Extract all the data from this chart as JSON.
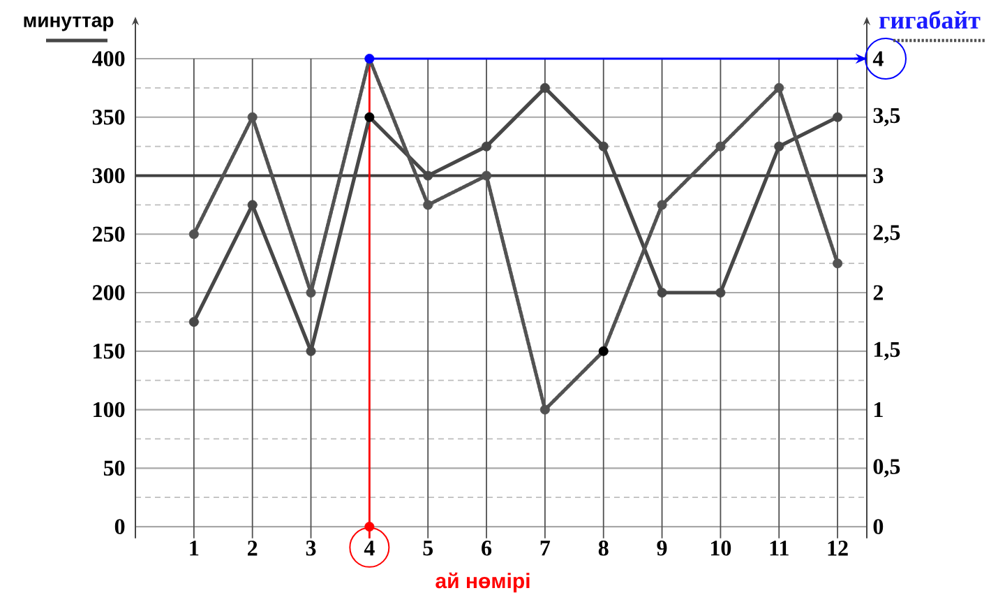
{
  "chart_data": {
    "type": "line",
    "xlabel": "ай нөмірі",
    "ylabel": "минуттар",
    "y2label": "гигабайт",
    "x": [
      1,
      2,
      3,
      4,
      5,
      6,
      7,
      8,
      9,
      10,
      11,
      12
    ],
    "xlim": [
      0,
      12.5
    ],
    "xticks": [
      1,
      2,
      3,
      4,
      5,
      6,
      7,
      8,
      9,
      10,
      11,
      12
    ],
    "ylim": [
      -10,
      400
    ],
    "yticks": [
      0,
      {
        "value": 25,
        "label": null
      },
      50,
      {
        "value": 75,
        "label": null
      },
      100,
      {
        "value": 125,
        "label": null
      },
      150,
      {
        "value": 175,
        "label": null
      },
      200,
      {
        "value": 225,
        "label": null
      },
      250,
      {
        "value": 275,
        "label": null
      },
      300,
      {
        "value": 325,
        "label": null
      },
      350,
      {
        "value": 375,
        "label": null
      },
      400
    ],
    "y2lim": [
      -0.1,
      4
    ],
    "y2ticks": [
      0,
      {
        "value": 0.5,
        "label": "0,5"
      },
      1,
      {
        "value": 1.5,
        "label": "1,5"
      },
      2,
      {
        "value": 2.5,
        "label": "2,5"
      },
      3,
      {
        "value": 3.5,
        "label": "3,5"
      },
      4
    ],
    "grid": true,
    "marker": "circle",
    "ref_lines": [
      {
        "axis": "y",
        "value": 300,
        "color": "#404040"
      },
      {
        "axis": "x",
        "value": 4,
        "color": "#ff0000"
      },
      {
        "axis": "y2",
        "value": 4,
        "color": "#0000ff"
      }
    ],
    "series": [
      {
        "color": "#474747",
        "colors": [
          "#474747",
          "#474747",
          "#474747",
          "#000000",
          "#474747",
          "#474747",
          "#474747",
          "#474747",
          "#474747",
          "#474747",
          "#474747",
          "#474747"
        ],
        "line_style": "solid",
        "values": [
          175,
          275,
          150,
          350,
          300,
          325,
          375,
          325,
          200,
          200,
          325,
          350
        ]
      },
      {
        "axis": "y2",
        "color": "#525252",
        "colors": [
          "#525252",
          "#525252",
          "#525252",
          "#0000ff",
          "#525252",
          "#525252",
          "#525252",
          "#000000",
          "#525252",
          "#525252",
          "#525252",
          "#525252"
        ],
        "line_style": "dotted",
        "values": [
          2.5,
          3.5,
          2,
          4,
          2.75,
          3,
          1,
          1.5,
          2.75,
          3.25,
          3.75,
          2.25
        ]
      },
      {
        "type": "scatter",
        "values": [
          null,
          null,
          null,
          0,
          null,
          null,
          null,
          null,
          null,
          null,
          null,
          null
        ],
        "color": "#ff0000"
      }
    ]
  }
}
